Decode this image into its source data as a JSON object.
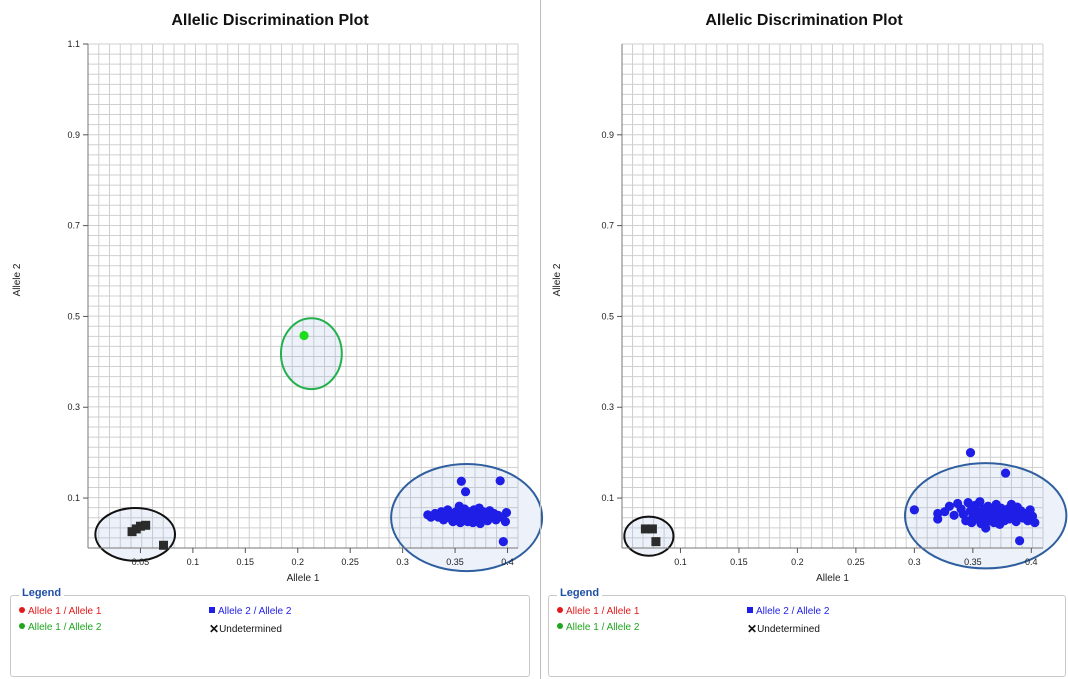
{
  "chart_data": [
    {
      "type": "scatter",
      "title": "Allelic Discrimination Plot",
      "xlabel": "Allele 1",
      "ylabel": "Allele 2",
      "xlim": [
        0.0,
        0.41
      ],
      "ylim": [
        -0.01,
        1.1
      ],
      "xticks": [
        0.05,
        0.1,
        0.15,
        0.2,
        0.25,
        0.3,
        0.35,
        0.4
      ],
      "xtick_labels": [
        "0.05",
        "0.1",
        "0.15",
        "0.2",
        "0.25",
        "0.3",
        "0.35",
        "0.4"
      ],
      "yticks": [
        0.1,
        0.3,
        0.5,
        0.7,
        0.9,
        1.1
      ],
      "ytick_labels": [
        "0.1",
        "0.3",
        "0.5",
        "0.7",
        "0.9",
        "1.1"
      ],
      "grid": true,
      "series": [
        {
          "name": "Allele 1 / Allele 1",
          "color": "#e31a1c",
          "marker": "circle",
          "points": []
        },
        {
          "name": "Allele 1 / Allele 2",
          "color": "#1fdc1f",
          "marker": "circle",
          "points": [
            [
              0.206,
              0.458
            ]
          ]
        },
        {
          "name": "Allele 2 / Allele 2",
          "color": "#1e1ee6",
          "marker": "circle",
          "points": [
            [
              0.324,
              0.063
            ],
            [
              0.327,
              0.058
            ],
            [
              0.331,
              0.066
            ],
            [
              0.334,
              0.058
            ],
            [
              0.337,
              0.07
            ],
            [
              0.339,
              0.052
            ],
            [
              0.341,
              0.062
            ],
            [
              0.343,
              0.074
            ],
            [
              0.345,
              0.056
            ],
            [
              0.346,
              0.066
            ],
            [
              0.348,
              0.048
            ],
            [
              0.349,
              0.06
            ],
            [
              0.351,
              0.07
            ],
            [
              0.352,
              0.054
            ],
            [
              0.353,
              0.064
            ],
            [
              0.354,
              0.082
            ],
            [
              0.355,
              0.046
            ],
            [
              0.356,
              0.058
            ],
            [
              0.356,
              0.137
            ],
            [
              0.357,
              0.068
            ],
            [
              0.358,
              0.052
            ],
            [
              0.359,
              0.076
            ],
            [
              0.36,
              0.114
            ],
            [
              0.361,
              0.06
            ],
            [
              0.362,
              0.048
            ],
            [
              0.363,
              0.07
            ],
            [
              0.364,
              0.056
            ],
            [
              0.366,
              0.064
            ],
            [
              0.367,
              0.046
            ],
            [
              0.368,
              0.074
            ],
            [
              0.369,
              0.058
            ],
            [
              0.37,
              0.052
            ],
            [
              0.372,
              0.066
            ],
            [
              0.373,
              0.078
            ],
            [
              0.374,
              0.044
            ],
            [
              0.375,
              0.06
            ],
            [
              0.377,
              0.07
            ],
            [
              0.378,
              0.054
            ],
            [
              0.38,
              0.064
            ],
            [
              0.381,
              0.05
            ],
            [
              0.383,
              0.072
            ],
            [
              0.385,
              0.058
            ],
            [
              0.387,
              0.066
            ],
            [
              0.389,
              0.052
            ],
            [
              0.391,
              0.062
            ],
            [
              0.393,
              0.138
            ],
            [
              0.395,
              0.058
            ],
            [
              0.396,
              0.004
            ],
            [
              0.398,
              0.048
            ],
            [
              0.399,
              0.068
            ]
          ]
        },
        {
          "name": "Undetermined",
          "color": "#2b2b2b",
          "marker": "square",
          "points": [
            [
              0.042,
              0.026
            ],
            [
              0.046,
              0.032
            ],
            [
              0.05,
              0.038
            ],
            [
              0.055,
              0.04
            ],
            [
              0.072,
              -0.004
            ]
          ]
        }
      ],
      "cluster_ellipses": [
        {
          "cx": 0.045,
          "cy": 0.02,
          "rx": 0.038,
          "ry": 0.058,
          "color": "#111111"
        },
        {
          "cx": 0.213,
          "cy": 0.418,
          "rx": 0.029,
          "ry": 0.078,
          "color": "#22b14c"
        },
        {
          "cx": 0.361,
          "cy": 0.057,
          "rx": 0.072,
          "ry": 0.118,
          "color": "#2f5f9e"
        }
      ],
      "legend": {
        "title": "Legend",
        "placement": "bottom",
        "items": [
          {
            "label": "Allele 1 / Allele 1",
            "color": "#e31a1c",
            "marker": "dot"
          },
          {
            "label": "Allele 2 / Allele 2",
            "color": "#1e1ee6",
            "marker": "square"
          },
          {
            "label": "Allele 1 / Allele 2",
            "color": "#1fa51f",
            "marker": "dot"
          },
          {
            "label": "Undetermined",
            "color": "#111111",
            "marker": "x"
          }
        ]
      }
    },
    {
      "type": "scatter",
      "title": "Allelic Discrimination Plot",
      "xlabel": "Allele 1",
      "ylabel": "Allele 2",
      "xlim": [
        0.05,
        0.41
      ],
      "ylim": [
        -0.01,
        1.1
      ],
      "xticks": [
        0.1,
        0.15,
        0.2,
        0.25,
        0.3,
        0.35,
        0.4
      ],
      "xtick_labels": [
        "0.1",
        "0.15",
        "0.2",
        "0.25",
        "0.3",
        "0.35",
        "0.4"
      ],
      "yticks": [
        0.1,
        0.3,
        0.5,
        0.7,
        0.9
      ],
      "ytick_labels": [
        "0.1",
        "0.3",
        "0.5",
        "0.7",
        "0.9"
      ],
      "grid": true,
      "series": [
        {
          "name": "Allele 1 / Allele 1",
          "color": "#e31a1c",
          "marker": "circle",
          "points": []
        },
        {
          "name": "Allele 1 / Allele 2",
          "color": "#1fdc1f",
          "marker": "circle",
          "points": []
        },
        {
          "name": "Allele 2 / Allele 2",
          "color": "#1e1ee6",
          "marker": "circle",
          "points": [
            [
              0.3,
              0.074
            ],
            [
              0.32,
              0.054
            ],
            [
              0.32,
              0.066
            ],
            [
              0.326,
              0.07
            ],
            [
              0.33,
              0.082
            ],
            [
              0.334,
              0.062
            ],
            [
              0.337,
              0.088
            ],
            [
              0.34,
              0.076
            ],
            [
              0.342,
              0.064
            ],
            [
              0.344,
              0.05
            ],
            [
              0.346,
              0.09
            ],
            [
              0.348,
              0.072
            ],
            [
              0.348,
              0.2
            ],
            [
              0.349,
              0.046
            ],
            [
              0.35,
              0.06
            ],
            [
              0.352,
              0.084
            ],
            [
              0.354,
              0.054
            ],
            [
              0.355,
              0.068
            ],
            [
              0.356,
              0.092
            ],
            [
              0.357,
              0.044
            ],
            [
              0.358,
              0.062
            ],
            [
              0.359,
              0.076
            ],
            [
              0.36,
              0.052
            ],
            [
              0.361,
              0.034
            ],
            [
              0.362,
              0.066
            ],
            [
              0.363,
              0.082
            ],
            [
              0.364,
              0.05
            ],
            [
              0.365,
              0.06
            ],
            [
              0.366,
              0.072
            ],
            [
              0.368,
              0.046
            ],
            [
              0.369,
              0.064
            ],
            [
              0.37,
              0.086
            ],
            [
              0.371,
              0.056
            ],
            [
              0.372,
              0.068
            ],
            [
              0.373,
              0.042
            ],
            [
              0.374,
              0.078
            ],
            [
              0.375,
              0.06
            ],
            [
              0.376,
              0.07
            ],
            [
              0.377,
              0.05
            ],
            [
              0.378,
              0.155
            ],
            [
              0.379,
              0.064
            ],
            [
              0.38,
              0.076
            ],
            [
              0.381,
              0.054
            ],
            [
              0.382,
              0.066
            ],
            [
              0.383,
              0.086
            ],
            [
              0.384,
              0.058
            ],
            [
              0.386,
              0.07
            ],
            [
              0.387,
              0.048
            ],
            [
              0.388,
              0.08
            ],
            [
              0.389,
              0.062
            ],
            [
              0.39,
              0.006
            ],
            [
              0.391,
              0.072
            ],
            [
              0.393,
              0.056
            ],
            [
              0.395,
              0.066
            ],
            [
              0.397,
              0.05
            ],
            [
              0.399,
              0.074
            ],
            [
              0.401,
              0.06
            ],
            [
              0.403,
              0.046
            ]
          ]
        },
        {
          "name": "Undetermined",
          "color": "#2b2b2b",
          "marker": "square",
          "points": [
            [
              0.07,
              0.032
            ],
            [
              0.076,
              0.032
            ],
            [
              0.079,
              0.004
            ]
          ]
        }
      ],
      "cluster_ellipses": [
        {
          "cx": 0.073,
          "cy": 0.016,
          "rx": 0.021,
          "ry": 0.043,
          "color": "#111111"
        },
        {
          "cx": 0.361,
          "cy": 0.061,
          "rx": 0.069,
          "ry": 0.116,
          "color": "#2f5f9e"
        }
      ],
      "legend": {
        "title": "Legend",
        "placement": "bottom",
        "items": [
          {
            "label": "Allele 1 / Allele 1",
            "color": "#e31a1c",
            "marker": "dot"
          },
          {
            "label": "Allele 2 / Allele 2",
            "color": "#1e1ee6",
            "marker": "square"
          },
          {
            "label": "Allele 1 / Allele 2",
            "color": "#1fa51f",
            "marker": "dot"
          },
          {
            "label": "Undetermined",
            "color": "#111111",
            "marker": "x"
          }
        ]
      }
    }
  ]
}
